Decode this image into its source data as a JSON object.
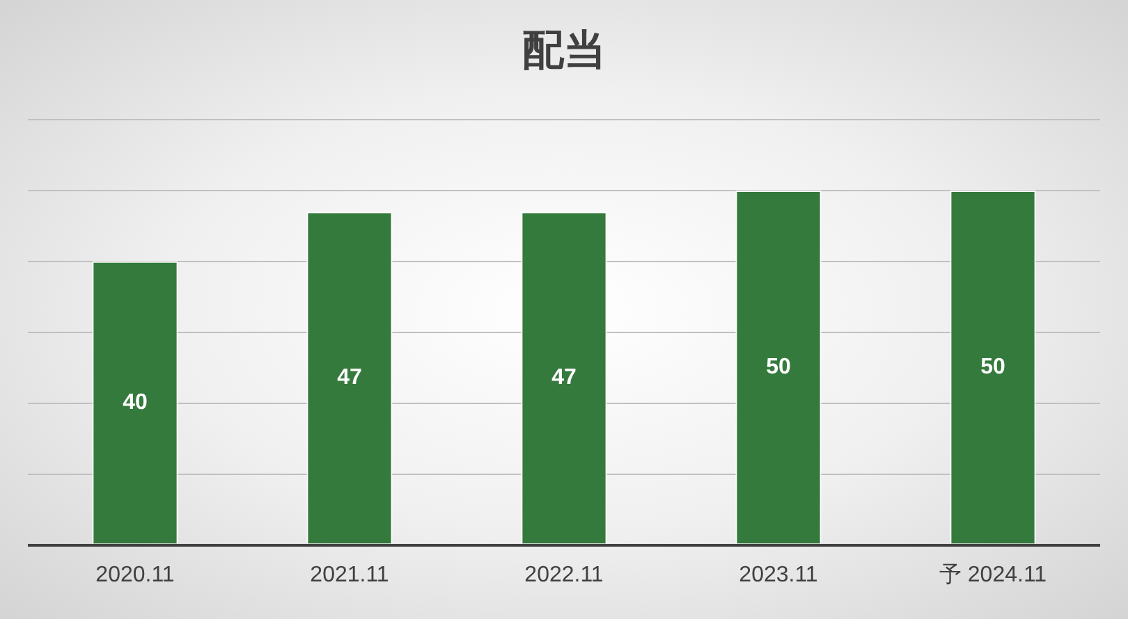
{
  "chart_data": {
    "type": "bar",
    "title": "配当",
    "categories": [
      "2020.11",
      "2021.11",
      "2022.11",
      "2023.11",
      "予 2024.11"
    ],
    "values": [
      40,
      47,
      47,
      50,
      50
    ],
    "color": "#357a3d",
    "ylim": [
      0,
      60
    ],
    "yticks": [
      {
        "value": 0,
        "label": null
      },
      {
        "value": 10,
        "label": null
      },
      {
        "value": 20,
        "label": null
      },
      {
        "value": 30,
        "label": null
      },
      {
        "value": 40,
        "label": null
      },
      {
        "value": 50,
        "label": null
      },
      {
        "value": 60,
        "label": null
      }
    ],
    "grid": "y",
    "tick_labels": "x",
    "data_labels": true,
    "legend": false
  }
}
